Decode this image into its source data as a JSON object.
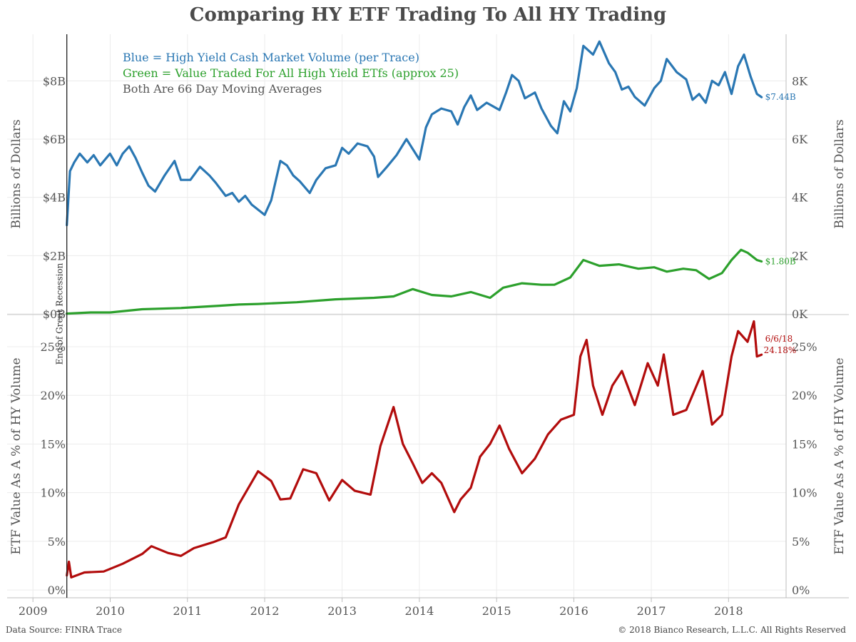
{
  "title": "Comparing HY ETF Trading To All HY Trading",
  "footer": {
    "source": "Data Source: FINRA Trace",
    "copyright": "© 2018 Bianco Research, L.L.C. All Rights Reserved"
  },
  "colors": {
    "blue": "#2a77b3",
    "green": "#2ca02c",
    "red": "#b20c0c",
    "text": "#555555",
    "grid": "#ececec"
  },
  "chart_data": [
    {
      "type": "line",
      "panel": "top",
      "legend": [
        {
          "text": "Blue = High Yield Cash Market Volume (per Trace)",
          "color": "#2a77b3"
        },
        {
          "text": "Green = Value Traded For All High Yield ETfs (approx 25)",
          "color": "#2ca02c"
        },
        {
          "text": "Both Are 66 Day Moving Averages",
          "color": "#555555"
        }
      ],
      "ylabel_left": "Billions of Dollars",
      "ylabel_right": "Billions of Dollars",
      "yticks_left": [
        "$0B",
        "$2B",
        "$4B",
        "$6B",
        "$8B"
      ],
      "yticks_right": [
        "0K",
        "2K",
        "4K",
        "6K",
        "8K"
      ],
      "ytick_values": [
        0,
        2,
        4,
        6,
        8
      ],
      "ylim": [
        0,
        9.6
      ],
      "grid": true,
      "series": [
        {
          "color": "#2a77b3",
          "end_label": "$7.44B",
          "points": [
            [
              "2009-06-10",
              3.05
            ],
            [
              "2009-06-25",
              4.9
            ],
            [
              "2009-07-15",
              5.2
            ],
            [
              "2009-08-10",
              5.5
            ],
            [
              "2009-09-15",
              5.2
            ],
            [
              "2009-10-15",
              5.45
            ],
            [
              "2009-11-15",
              5.1
            ],
            [
              "2009-12-31",
              5.5
            ],
            [
              "2010-02-01",
              5.1
            ],
            [
              "2010-03-01",
              5.5
            ],
            [
              "2010-04-01",
              5.75
            ],
            [
              "2010-05-01",
              5.35
            ],
            [
              "2010-06-01",
              4.85
            ],
            [
              "2010-07-01",
              4.4
            ],
            [
              "2010-08-01",
              4.2
            ],
            [
              "2010-09-15",
              4.75
            ],
            [
              "2010-11-01",
              5.25
            ],
            [
              "2010-12-01",
              4.6
            ],
            [
              "2011-01-15",
              4.6
            ],
            [
              "2011-03-01",
              5.05
            ],
            [
              "2011-04-15",
              4.75
            ],
            [
              "2011-05-15",
              4.5
            ],
            [
              "2011-07-01",
              4.05
            ],
            [
              "2011-08-01",
              4.15
            ],
            [
              "2011-09-01",
              3.85
            ],
            [
              "2011-10-01",
              4.05
            ],
            [
              "2011-11-01",
              3.75
            ],
            [
              "2012-01-01",
              3.4
            ],
            [
              "2012-02-01",
              3.9
            ],
            [
              "2012-03-15",
              5.25
            ],
            [
              "2012-04-15",
              5.1
            ],
            [
              "2012-05-15",
              4.75
            ],
            [
              "2012-06-15",
              4.55
            ],
            [
              "2012-08-01",
              4.15
            ],
            [
              "2012-09-01",
              4.6
            ],
            [
              "2012-10-15",
              5.0
            ],
            [
              "2012-12-01",
              5.1
            ],
            [
              "2013-01-01",
              5.7
            ],
            [
              "2013-02-01",
              5.5
            ],
            [
              "2013-03-15",
              5.85
            ],
            [
              "2013-05-01",
              5.75
            ],
            [
              "2013-06-01",
              5.4
            ],
            [
              "2013-06-20",
              4.7
            ],
            [
              "2013-08-01",
              5.05
            ],
            [
              "2013-09-15",
              5.45
            ],
            [
              "2013-11-01",
              6.0
            ],
            [
              "2014-01-01",
              5.3
            ],
            [
              "2014-02-01",
              6.4
            ],
            [
              "2014-03-01",
              6.85
            ],
            [
              "2014-04-15",
              7.05
            ],
            [
              "2014-06-01",
              6.95
            ],
            [
              "2014-07-01",
              6.5
            ],
            [
              "2014-08-01",
              7.1
            ],
            [
              "2014-09-01",
              7.5
            ],
            [
              "2014-10-01",
              7.0
            ],
            [
              "2014-11-15",
              7.25
            ],
            [
              "2015-01-15",
              7.0
            ],
            [
              "2015-02-15",
              7.6
            ],
            [
              "2015-03-15",
              8.2
            ],
            [
              "2015-04-15",
              8.0
            ],
            [
              "2015-05-15",
              7.4
            ],
            [
              "2015-07-01",
              7.6
            ],
            [
              "2015-08-01",
              7.05
            ],
            [
              "2015-09-15",
              6.45
            ],
            [
              "2015-10-15",
              6.2
            ],
            [
              "2015-11-15",
              7.3
            ],
            [
              "2015-12-15",
              6.95
            ],
            [
              "2016-01-15",
              7.75
            ],
            [
              "2016-02-15",
              9.2
            ],
            [
              "2016-04-01",
              8.9
            ],
            [
              "2016-05-01",
              9.35
            ],
            [
              "2016-06-15",
              8.6
            ],
            [
              "2016-07-15",
              8.3
            ],
            [
              "2016-08-15",
              7.7
            ],
            [
              "2016-09-15",
              7.8
            ],
            [
              "2016-10-15",
              7.45
            ],
            [
              "2016-12-01",
              7.15
            ],
            [
              "2017-01-15",
              7.75
            ],
            [
              "2017-02-15",
              8.0
            ],
            [
              "2017-03-15",
              8.75
            ],
            [
              "2017-05-01",
              8.3
            ],
            [
              "2017-06-15",
              8.05
            ],
            [
              "2017-07-15",
              7.35
            ],
            [
              "2017-08-15",
              7.55
            ],
            [
              "2017-09-15",
              7.25
            ],
            [
              "2017-10-15",
              8.0
            ],
            [
              "2017-11-15",
              7.85
            ],
            [
              "2017-12-15",
              8.3
            ],
            [
              "2018-01-15",
              7.55
            ],
            [
              "2018-02-15",
              8.5
            ],
            [
              "2018-03-15",
              8.9
            ],
            [
              "2018-04-15",
              8.15
            ],
            [
              "2018-05-15",
              7.55
            ],
            [
              "2018-06-06",
              7.44
            ]
          ]
        },
        {
          "color": "#2ca02c",
          "end_label": "$1.80B",
          "points": [
            [
              "2009-06-10",
              0.01
            ],
            [
              "2009-10-01",
              0.05
            ],
            [
              "2010-01-01",
              0.05
            ],
            [
              "2010-06-01",
              0.16
            ],
            [
              "2010-12-01",
              0.2
            ],
            [
              "2011-06-01",
              0.28
            ],
            [
              "2011-09-01",
              0.32
            ],
            [
              "2011-12-01",
              0.34
            ],
            [
              "2012-06-01",
              0.4
            ],
            [
              "2012-12-01",
              0.5
            ],
            [
              "2013-06-01",
              0.55
            ],
            [
              "2013-09-01",
              0.6
            ],
            [
              "2013-12-01",
              0.85
            ],
            [
              "2014-03-01",
              0.65
            ],
            [
              "2014-06-01",
              0.6
            ],
            [
              "2014-09-01",
              0.75
            ],
            [
              "2014-12-01",
              0.55
            ],
            [
              "2015-02-01",
              0.9
            ],
            [
              "2015-05-01",
              1.05
            ],
            [
              "2015-08-01",
              1.0
            ],
            [
              "2015-10-01",
              1.0
            ],
            [
              "2015-12-15",
              1.25
            ],
            [
              "2016-02-15",
              1.85
            ],
            [
              "2016-05-01",
              1.65
            ],
            [
              "2016-08-01",
              1.7
            ],
            [
              "2016-11-01",
              1.55
            ],
            [
              "2017-01-15",
              1.6
            ],
            [
              "2017-03-15",
              1.45
            ],
            [
              "2017-06-01",
              1.55
            ],
            [
              "2017-08-01",
              1.5
            ],
            [
              "2017-10-01",
              1.2
            ],
            [
              "2017-12-01",
              1.4
            ],
            [
              "2018-01-15",
              1.85
            ],
            [
              "2018-03-01",
              2.2
            ],
            [
              "2018-04-01",
              2.1
            ],
            [
              "2018-05-15",
              1.85
            ],
            [
              "2018-06-06",
              1.8
            ]
          ]
        }
      ]
    },
    {
      "type": "line",
      "panel": "bottom",
      "ylabel_left": "ETF Value As A % of HY Volume",
      "ylabel_right": "ETF Value As A % of HY Volume",
      "yticks_left": [
        "0%",
        "5%",
        "10%",
        "15%",
        "20%",
        "25%"
      ],
      "yticks_right": [
        "0%",
        "5%",
        "10%",
        "15%",
        "20%",
        "25%"
      ],
      "ytick_values": [
        0,
        5,
        10,
        15,
        20,
        25
      ],
      "ylim": [
        -0.8,
        28.3
      ],
      "grid": true,
      "series": [
        {
          "color": "#b20c0c",
          "end_label_date": "6/6/18",
          "end_label_value": "24.18%",
          "points": [
            [
              "2009-06-10",
              1.5
            ],
            [
              "2009-06-20",
              2.9
            ],
            [
              "2009-07-01",
              1.3
            ],
            [
              "2009-09-01",
              1.8
            ],
            [
              "2009-12-01",
              1.9
            ],
            [
              "2010-03-01",
              2.7
            ],
            [
              "2010-06-01",
              3.7
            ],
            [
              "2010-07-15",
              4.5
            ],
            [
              "2010-10-01",
              3.8
            ],
            [
              "2010-12-01",
              3.5
            ],
            [
              "2011-02-01",
              4.3
            ],
            [
              "2011-05-01",
              4.9
            ],
            [
              "2011-07-01",
              5.4
            ],
            [
              "2011-09-01",
              8.8
            ],
            [
              "2011-12-01",
              12.2
            ],
            [
              "2012-02-01",
              11.2
            ],
            [
              "2012-03-15",
              9.3
            ],
            [
              "2012-05-01",
              9.4
            ],
            [
              "2012-07-01",
              12.4
            ],
            [
              "2012-09-01",
              12.0
            ],
            [
              "2012-11-01",
              9.2
            ],
            [
              "2013-01-01",
              11.3
            ],
            [
              "2013-03-01",
              10.2
            ],
            [
              "2013-05-15",
              9.8
            ],
            [
              "2013-07-01",
              14.8
            ],
            [
              "2013-09-01",
              18.8
            ],
            [
              "2013-10-15",
              15.0
            ],
            [
              "2013-12-01",
              13.0
            ],
            [
              "2014-01-15",
              11.0
            ],
            [
              "2014-03-01",
              12.0
            ],
            [
              "2014-04-15",
              11.0
            ],
            [
              "2014-06-15",
              8.0
            ],
            [
              "2014-07-15",
              9.3
            ],
            [
              "2014-09-01",
              10.5
            ],
            [
              "2014-10-15",
              13.7
            ],
            [
              "2014-12-01",
              15.0
            ],
            [
              "2015-01-15",
              16.9
            ],
            [
              "2015-03-01",
              14.5
            ],
            [
              "2015-05-01",
              12.0
            ],
            [
              "2015-07-01",
              13.5
            ],
            [
              "2015-09-01",
              16.0
            ],
            [
              "2015-11-01",
              17.5
            ],
            [
              "2016-01-01",
              18.0
            ],
            [
              "2016-02-01",
              24.0
            ],
            [
              "2016-03-01",
              25.7
            ],
            [
              "2016-04-01",
              21.0
            ],
            [
              "2016-05-15",
              18.0
            ],
            [
              "2016-07-01",
              21.0
            ],
            [
              "2016-08-15",
              22.5
            ],
            [
              "2016-10-15",
              19.0
            ],
            [
              "2016-12-15",
              23.3
            ],
            [
              "2017-02-01",
              21.0
            ],
            [
              "2017-03-01",
              24.2
            ],
            [
              "2017-04-15",
              18.0
            ],
            [
              "2017-06-15",
              18.5
            ],
            [
              "2017-09-01",
              22.5
            ],
            [
              "2017-10-15",
              17.0
            ],
            [
              "2017-12-01",
              18.0
            ],
            [
              "2018-01-15",
              24.0
            ],
            [
              "2018-02-15",
              26.6
            ],
            [
              "2018-04-01",
              25.5
            ],
            [
              "2018-05-01",
              27.6
            ],
            [
              "2018-05-15",
              24.0
            ],
            [
              "2018-06-06",
              24.18
            ]
          ]
        }
      ]
    }
  ],
  "xaxis": {
    "ticks": [
      "2009",
      "2010",
      "2011",
      "2012",
      "2013",
      "2014",
      "2015",
      "2016",
      "2017",
      "2018"
    ],
    "range": [
      "2008-09-01",
      "2018-09-30"
    ]
  },
  "annotation": {
    "label": "End of Great Recession",
    "date": "2009-06-10"
  }
}
